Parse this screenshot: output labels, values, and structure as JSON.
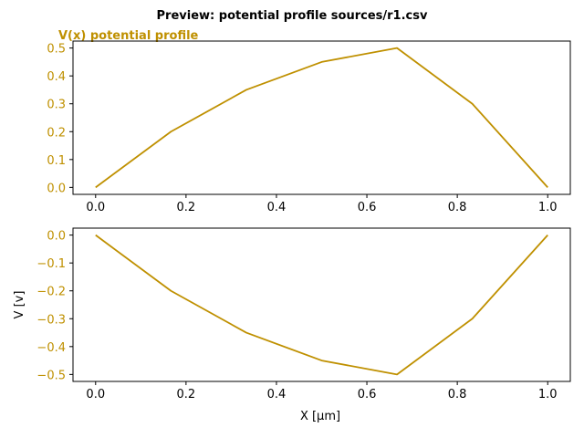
{
  "figure": {
    "title": "Preview: potential profile sources/r1.csv",
    "accent_color": "#bf9000"
  },
  "chart_data": [
    {
      "type": "line",
      "title": "V(x) potential profile",
      "xlabel": "",
      "ylabel": "",
      "x": [
        0.0,
        0.1667,
        0.3333,
        0.5,
        0.6667,
        0.8333,
        1.0
      ],
      "series": [
        {
          "values": [
            0.0,
            0.2,
            0.35,
            0.45,
            0.5,
            0.3,
            0.0
          ]
        }
      ],
      "xlim": [
        -0.05,
        1.05
      ],
      "ylim": [
        -0.025,
        0.525
      ],
      "xticks": [
        0.0,
        0.2,
        0.4,
        0.6,
        0.8,
        1.0
      ],
      "xtick_labels": [
        "0.0",
        "0.2",
        "0.4",
        "0.6",
        "0.8",
        "1.0"
      ],
      "yticks": [
        0.0,
        0.1,
        0.2,
        0.3,
        0.4,
        0.5
      ],
      "ytick_labels": [
        "0.0",
        "0.1",
        "0.2",
        "0.3",
        "0.4",
        "0.5"
      ],
      "grid": false,
      "line_color": "#bf9000",
      "ytick_color": "#bf9000",
      "title_color": "#bf9000"
    },
    {
      "type": "line",
      "title": "",
      "xlabel": "X [μm]",
      "ylabel": "V [v]",
      "x": [
        0.0,
        0.1667,
        0.3333,
        0.5,
        0.6667,
        0.8333,
        1.0
      ],
      "series": [
        {
          "values": [
            0.0,
            -0.2,
            -0.35,
            -0.45,
            -0.5,
            -0.3,
            0.0
          ]
        }
      ],
      "xlim": [
        -0.05,
        1.05
      ],
      "ylim": [
        -0.525,
        0.025
      ],
      "xticks": [
        0.0,
        0.2,
        0.4,
        0.6,
        0.8,
        1.0
      ],
      "xtick_labels": [
        "0.0",
        "0.2",
        "0.4",
        "0.6",
        "0.8",
        "1.0"
      ],
      "yticks": [
        0.0,
        -0.1,
        -0.2,
        -0.3,
        -0.4,
        -0.5
      ],
      "ytick_labels": [
        "0.0",
        "−0.1",
        "−0.2",
        "−0.3",
        "−0.4",
        "−0.5"
      ],
      "grid": false,
      "line_color": "#bf9000",
      "ytick_color": "#bf9000",
      "title_color": "#bf9000"
    }
  ]
}
